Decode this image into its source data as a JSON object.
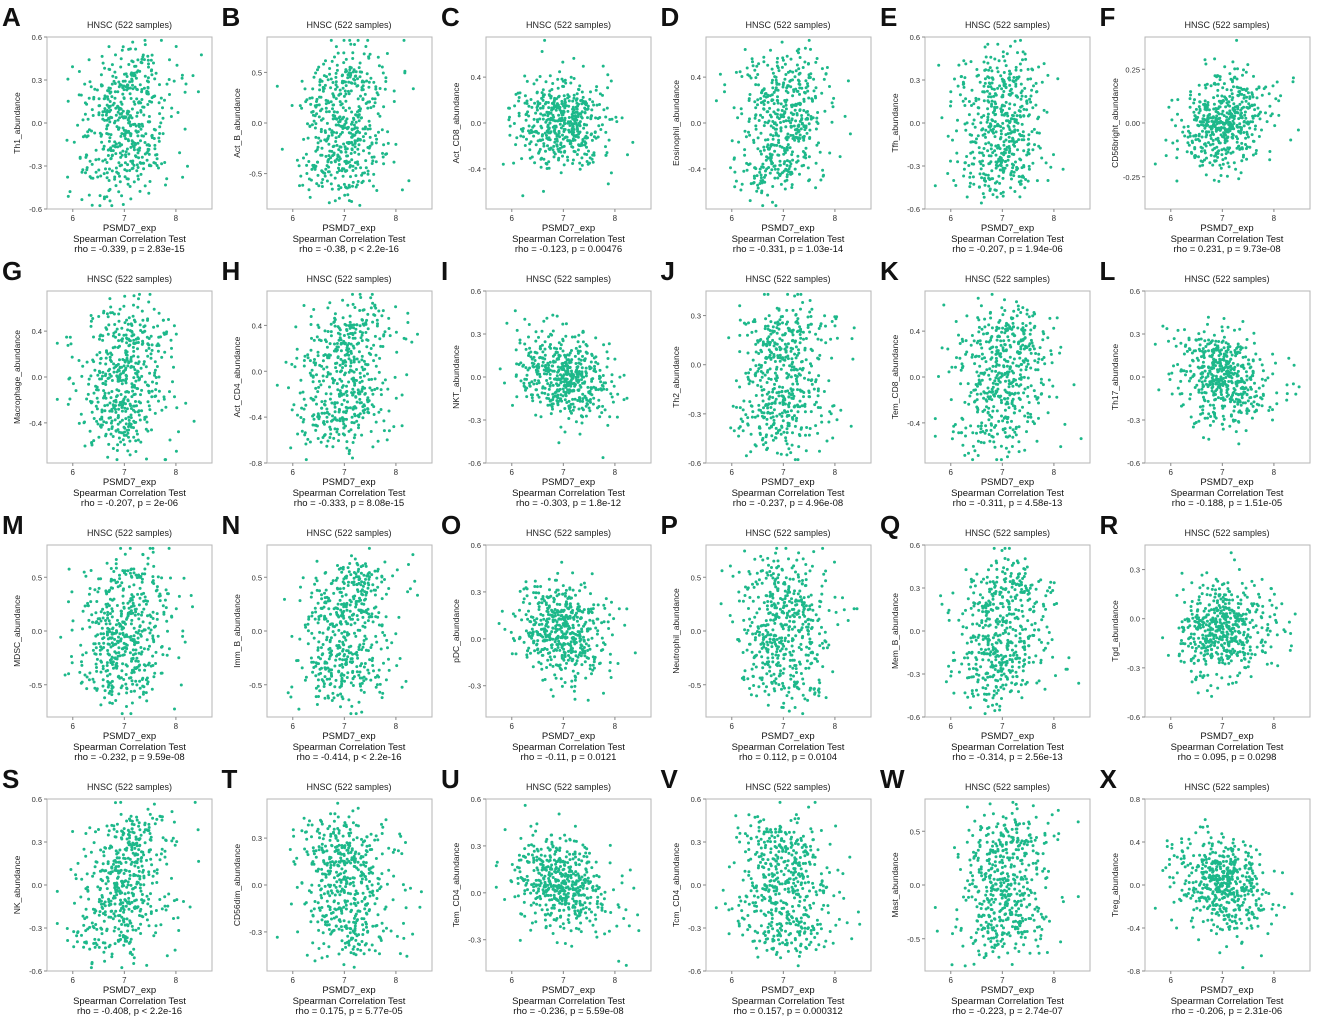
{
  "figure": {
    "point_color": "#1db88a",
    "panels_per_row": 6
  },
  "chart_data": [
    {
      "letter": "A",
      "type": "scatter",
      "title": "HNSC (522 samples)",
      "xlabel": "PSMD7_exp",
      "ylabel": "Th1_abundance",
      "xticks": [
        "6",
        "7",
        "8"
      ],
      "yticks": [
        "-0.6",
        "-0.3",
        "0.0",
        "0.3",
        "0.6"
      ],
      "ylim": [
        -0.6,
        0.6
      ],
      "xlim": [
        5.5,
        8.7
      ],
      "test": "Spearman Correlation Test",
      "stat": "rho = -0.339, p = 2.83e-15",
      "rho": -0.339,
      "n": 522
    },
    {
      "letter": "B",
      "type": "scatter",
      "title": "HNSC (522 samples)",
      "xlabel": "PSMD7_exp",
      "ylabel": "Act_B_abundance",
      "xticks": [
        "6",
        "7",
        "8"
      ],
      "yticks": [
        "-0.5",
        "0.0",
        "0.5"
      ],
      "ylim": [
        -0.85,
        0.85
      ],
      "xlim": [
        5.5,
        8.7
      ],
      "test": "Spearman Correlation Test",
      "stat": "rho = -0.38, p < 2.2e-16",
      "rho": -0.38,
      "n": 522
    },
    {
      "letter": "C",
      "type": "scatter",
      "title": "HNSC (522 samples)",
      "xlabel": "PSMD7_exp",
      "ylabel": "Act_CD8_abundance",
      "xticks": [
        "6",
        "7",
        "8"
      ],
      "yticks": [
        "-0.4",
        "0.0",
        "0.4"
      ],
      "ylim": [
        -0.75,
        0.75
      ],
      "xlim": [
        5.5,
        8.7
      ],
      "test": "Spearman Correlation Test",
      "stat": "rho = -0.123, p = 0.00476",
      "rho": -0.123,
      "n": 522
    },
    {
      "letter": "D",
      "type": "scatter",
      "title": "HNSC (522 samples)",
      "xlabel": "PSMD7_exp",
      "ylabel": "Eosinophil_abundance",
      "xticks": [
        "6",
        "7",
        "8"
      ],
      "yticks": [
        "-0.4",
        "0.0",
        "0.4"
      ],
      "ylim": [
        -0.75,
        0.75
      ],
      "xlim": [
        5.5,
        8.7
      ],
      "test": "Spearman Correlation Test",
      "stat": "rho = -0.331, p = 1.03e-14",
      "rho": -0.331,
      "n": 522
    },
    {
      "letter": "E",
      "type": "scatter",
      "title": "HNSC (522 samples)",
      "xlabel": "PSMD7_exp",
      "ylabel": "Tfh_abundance",
      "xticks": [
        "6",
        "7",
        "8"
      ],
      "yticks": [
        "-0.6",
        "-0.3",
        "0.0",
        "0.3",
        "0.6"
      ],
      "ylim": [
        -0.6,
        0.6
      ],
      "xlim": [
        5.5,
        8.7
      ],
      "test": "Spearman Correlation Test",
      "stat": "rho = -0.207, p = 1.94e-06",
      "rho": -0.207,
      "n": 522
    },
    {
      "letter": "F",
      "type": "scatter",
      "title": "HNSC (522 samples)",
      "xlabel": "PSMD7_exp",
      "ylabel": "CD56bright_abundance",
      "xticks": [
        "6",
        "7",
        "8"
      ],
      "yticks": [
        "-0.25",
        "0.00",
        "0.25"
      ],
      "ylim": [
        -0.4,
        0.4
      ],
      "xlim": [
        5.5,
        8.7
      ],
      "test": "Spearman Correlation Test",
      "stat": "rho = 0.231, p = 9.73e-08",
      "rho": 0.231,
      "n": 522
    },
    {
      "letter": "G",
      "type": "scatter",
      "title": "HNSC (522 samples)",
      "xlabel": "PSMD7_exp",
      "ylabel": "Macrophage_abundance",
      "xticks": [
        "6",
        "7",
        "8"
      ],
      "yticks": [
        "-0.4",
        "0.0",
        "0.4"
      ],
      "ylim": [
        -0.75,
        0.75
      ],
      "xlim": [
        5.5,
        8.7
      ],
      "test": "Spearman Correlation Test",
      "stat": "rho = -0.207, p = 2e-06",
      "rho": -0.207,
      "n": 522
    },
    {
      "letter": "H",
      "type": "scatter",
      "title": "HNSC (522 samples)",
      "xlabel": "PSMD7_exp",
      "ylabel": "Act_CD4_abundance",
      "xticks": [
        "6",
        "7",
        "8"
      ],
      "yticks": [
        "-0.8",
        "-0.4",
        "0.0",
        "0.4"
      ],
      "ylim": [
        -0.8,
        0.7
      ],
      "xlim": [
        5.5,
        8.7
      ],
      "test": "Spearman Correlation Test",
      "stat": "rho = -0.333, p = 8.08e-15",
      "rho": -0.333,
      "n": 522
    },
    {
      "letter": "I",
      "type": "scatter",
      "title": "HNSC (522 samples)",
      "xlabel": "PSMD7_exp",
      "ylabel": "NKT_abundance",
      "xticks": [
        "6",
        "7",
        "8"
      ],
      "yticks": [
        "-0.6",
        "-0.3",
        "0.0",
        "0.3",
        "0.6"
      ],
      "ylim": [
        -0.6,
        0.6
      ],
      "xlim": [
        5.5,
        8.7
      ],
      "test": "Spearman Correlation Test",
      "stat": "rho = -0.303, p = 1.8e-12",
      "rho": -0.303,
      "n": 522
    },
    {
      "letter": "J",
      "type": "scatter",
      "title": "HNSC (522 samples)",
      "xlabel": "PSMD7_exp",
      "ylabel": "Th2_abundance",
      "xticks": [
        "6",
        "7",
        "8"
      ],
      "yticks": [
        "-0.6",
        "-0.3",
        "0.0",
        "0.3"
      ],
      "ylim": [
        -0.6,
        0.45
      ],
      "xlim": [
        5.5,
        8.7
      ],
      "test": "Spearman Correlation Test",
      "stat": "rho = -0.237, p = 4.96e-08",
      "rho": -0.237,
      "n": 522
    },
    {
      "letter": "K",
      "type": "scatter",
      "title": "HNSC (522 samples)",
      "xlabel": "PSMD7_exp",
      "ylabel": "Tem_CD8_abundance",
      "xticks": [
        "6",
        "7",
        "8"
      ],
      "yticks": [
        "-0.4",
        "0.0",
        "0.4"
      ],
      "ylim": [
        -0.75,
        0.75
      ],
      "xlim": [
        5.5,
        8.7
      ],
      "test": "Spearman Correlation Test",
      "stat": "rho = -0.311, p = 4.58e-13",
      "rho": -0.311,
      "n": 522
    },
    {
      "letter": "L",
      "type": "scatter",
      "title": "HNSC (522 samples)",
      "xlabel": "PSMD7_exp",
      "ylabel": "Th17_abundance",
      "xticks": [
        "6",
        "7",
        "8"
      ],
      "yticks": [
        "-0.6",
        "-0.3",
        "0.0",
        "0.3",
        "0.6"
      ],
      "ylim": [
        -0.6,
        0.6
      ],
      "xlim": [
        5.5,
        8.7
      ],
      "test": "Spearman Correlation Test",
      "stat": "rho = -0.188, p = 1.51e-05",
      "rho": -0.188,
      "n": 522
    },
    {
      "letter": "M",
      "type": "scatter",
      "title": "HNSC (522 samples)",
      "xlabel": "PSMD7_exp",
      "ylabel": "MDSC_abundance",
      "xticks": [
        "6",
        "7",
        "8"
      ],
      "yticks": [
        "-0.5",
        "0.0",
        "0.5"
      ],
      "ylim": [
        -0.8,
        0.8
      ],
      "xlim": [
        5.5,
        8.7
      ],
      "test": "Spearman Correlation Test",
      "stat": "rho = -0.232, p = 9.59e-08",
      "rho": -0.232,
      "n": 522
    },
    {
      "letter": "N",
      "type": "scatter",
      "title": "HNSC (522 samples)",
      "xlabel": "PSMD7_exp",
      "ylabel": "Imm_B_abundance",
      "xticks": [
        "6",
        "7",
        "8"
      ],
      "yticks": [
        "-0.5",
        "0.0",
        "0.5"
      ],
      "ylim": [
        -0.8,
        0.8
      ],
      "xlim": [
        5.5,
        8.7
      ],
      "test": "Spearman Correlation Test",
      "stat": "rho = -0.414, p < 2.2e-16",
      "rho": -0.414,
      "n": 522
    },
    {
      "letter": "O",
      "type": "scatter",
      "title": "HNSC (522 samples)",
      "xlabel": "PSMD7_exp",
      "ylabel": "pDC_abundance",
      "xticks": [
        "6",
        "7",
        "8"
      ],
      "yticks": [
        "-0.3",
        "0.0",
        "0.3",
        "0.6"
      ],
      "ylim": [
        -0.5,
        0.6
      ],
      "xlim": [
        5.5,
        8.7
      ],
      "test": "Spearman Correlation Test",
      "stat": "rho = -0.11, p = 0.0121",
      "rho": -0.11,
      "n": 522
    },
    {
      "letter": "P",
      "type": "scatter",
      "title": "HNSC (522 samples)",
      "xlabel": "PSMD7_exp",
      "ylabel": "Neutrophil_abundance",
      "xticks": [
        "6",
        "7",
        "8"
      ],
      "yticks": [
        "-0.5",
        "0.0",
        "0.5"
      ],
      "ylim": [
        -0.8,
        0.8
      ],
      "xlim": [
        5.5,
        8.7
      ],
      "test": "Spearman Correlation Test",
      "stat": "rho = 0.112, p = 0.0104",
      "rho": 0.112,
      "n": 522
    },
    {
      "letter": "Q",
      "type": "scatter",
      "title": "HNSC (522 samples)",
      "xlabel": "PSMD7_exp",
      "ylabel": "Mem_B_abundance",
      "xticks": [
        "6",
        "7",
        "8"
      ],
      "yticks": [
        "-0.6",
        "-0.3",
        "0.0",
        "0.3",
        "0.6"
      ],
      "ylim": [
        -0.6,
        0.6
      ],
      "xlim": [
        5.5,
        8.7
      ],
      "test": "Spearman Correlation Test",
      "stat": "rho = -0.314, p = 2.56e-13",
      "rho": -0.314,
      "n": 522
    },
    {
      "letter": "R",
      "type": "scatter",
      "title": "HNSC (522 samples)",
      "xlabel": "PSMD7_exp",
      "ylabel": "Tgd_abundance",
      "xticks": [
        "6",
        "7",
        "8"
      ],
      "yticks": [
        "-0.6",
        "-0.3",
        "0.0",
        "0.3"
      ],
      "ylim": [
        -0.6,
        0.45
      ],
      "xlim": [
        5.5,
        8.7
      ],
      "test": "Spearman Correlation Test",
      "stat": "rho = 0.095, p = 0.0298",
      "rho": 0.095,
      "n": 522
    },
    {
      "letter": "S",
      "type": "scatter",
      "title": "HNSC (522 samples)",
      "xlabel": "PSMD7_exp",
      "ylabel": "NK_abundance",
      "xticks": [
        "6",
        "7",
        "8"
      ],
      "yticks": [
        "-0.6",
        "-0.3",
        "0.0",
        "0.3",
        "0.6"
      ],
      "ylim": [
        -0.6,
        0.6
      ],
      "xlim": [
        5.5,
        8.7
      ],
      "test": "Spearman Correlation Test",
      "stat": "rho = -0.408, p < 2.2e-16",
      "rho": -0.408,
      "n": 522
    },
    {
      "letter": "T",
      "type": "scatter",
      "title": "HNSC (522 samples)",
      "xlabel": "PSMD7_exp",
      "ylabel": "CD56dim_abundance",
      "xticks": [
        "6",
        "7",
        "8"
      ],
      "yticks": [
        "-0.3",
        "0.0",
        "0.3"
      ],
      "ylim": [
        -0.55,
        0.55
      ],
      "xlim": [
        5.5,
        8.7
      ],
      "test": "Spearman Correlation Test",
      "stat": "rho = 0.175, p = 5.77e-05",
      "rho": 0.175,
      "n": 522
    },
    {
      "letter": "U",
      "type": "scatter",
      "title": "HNSC (522 samples)",
      "xlabel": "PSMD7_exp",
      "ylabel": "Tem_CD4_abundance",
      "xticks": [
        "6",
        "7",
        "8"
      ],
      "yticks": [
        "-0.3",
        "0.0",
        "0.3",
        "0.6"
      ],
      "ylim": [
        -0.5,
        0.6
      ],
      "xlim": [
        5.5,
        8.7
      ],
      "test": "Spearman Correlation Test",
      "stat": "rho = -0.236, p = 5.59e-08",
      "rho": -0.236,
      "n": 522
    },
    {
      "letter": "V",
      "type": "scatter",
      "title": "HNSC (522 samples)",
      "xlabel": "PSMD7_exp",
      "ylabel": "Tcm_CD4_abundance",
      "xticks": [
        "6",
        "7",
        "8"
      ],
      "yticks": [
        "-0.6",
        "-0.3",
        "0.0",
        "0.3",
        "0.6"
      ],
      "ylim": [
        -0.6,
        0.6
      ],
      "xlim": [
        5.5,
        8.7
      ],
      "test": "Spearman Correlation Test",
      "stat": "rho = 0.157, p = 0.000312",
      "rho": 0.157,
      "n": 522
    },
    {
      "letter": "W",
      "type": "scatter",
      "title": "HNSC (522 samples)",
      "xlabel": "PSMD7_exp",
      "ylabel": "Mast_abundance",
      "xticks": [
        "6",
        "7",
        "8"
      ],
      "yticks": [
        "-0.5",
        "0.0",
        "0.5"
      ],
      "ylim": [
        -0.8,
        0.8
      ],
      "xlim": [
        5.5,
        8.7
      ],
      "test": "Spearman Correlation Test",
      "stat": "rho = -0.223, p = 2.74e-07",
      "rho": -0.223,
      "n": 522
    },
    {
      "letter": "X",
      "type": "scatter",
      "title": "HNSC (522 samples)",
      "xlabel": "PSMD7_exp",
      "ylabel": "Treg_abundance",
      "xticks": [
        "6",
        "7",
        "8"
      ],
      "yticks": [
        "-0.8",
        "-0.4",
        "0.0",
        "0.4",
        "0.8"
      ],
      "ylim": [
        -0.8,
        0.8
      ],
      "xlim": [
        5.5,
        8.7
      ],
      "test": "Spearman Correlation Test",
      "stat": "rho = -0.206, p = 2.31e-06",
      "rho": -0.206,
      "n": 522
    }
  ]
}
